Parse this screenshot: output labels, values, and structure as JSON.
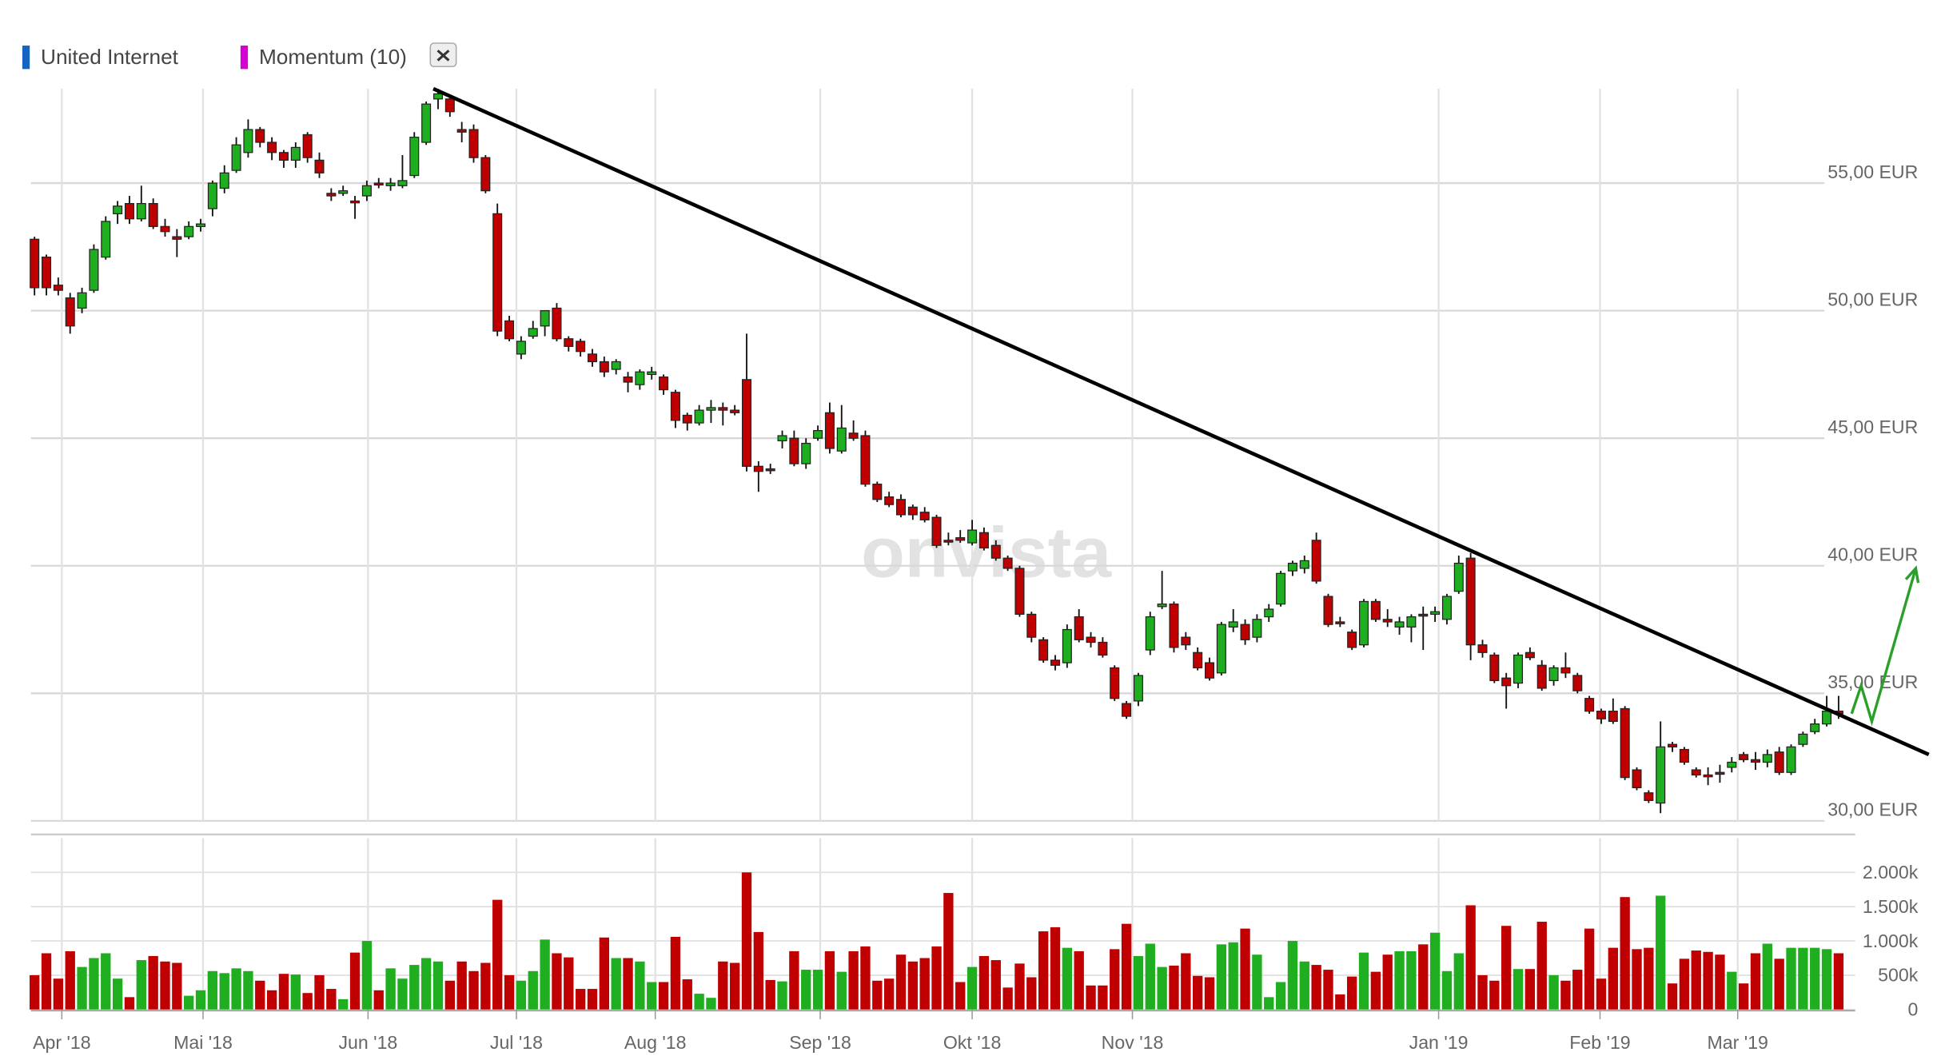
{
  "chart_data": {
    "type": "candlestick",
    "legend": [
      {
        "name": "United Internet",
        "color": "#1565c0"
      },
      {
        "name": "Momentum (10)",
        "color": "#d400d4"
      }
    ],
    "watermark": "onvista",
    "up_color": "#1fae1f",
    "down_color": "#c00000",
    "xlim": [
      -0.3,
      153.4
    ],
    "xticks": [
      {
        "value": 2.3,
        "label": "Apr '18"
      },
      {
        "value": 14.2,
        "label": "Mai '18"
      },
      {
        "value": 28.1,
        "label": "Jun '18"
      },
      {
        "value": 40.6,
        "label": "Jul '18"
      },
      {
        "value": 52.3,
        "label": "Aug '18"
      },
      {
        "value": 66.2,
        "label": "Sep '18"
      },
      {
        "value": 79.0,
        "label": "Okt '18"
      },
      {
        "value": 92.5,
        "label": "Nov '18"
      },
      {
        "value": 118.3,
        "label": "Jan '19"
      },
      {
        "value": 131.9,
        "label": "Feb '19"
      },
      {
        "value": 143.5,
        "label": "Mar '19"
      }
    ],
    "ylim": [
      30,
      58.7
    ],
    "yticks": [
      {
        "value": 30,
        "label": "30,00 EUR"
      },
      {
        "value": 35,
        "label": "35,00 EUR"
      },
      {
        "value": 40,
        "label": "40,00 EUR"
      },
      {
        "value": 45,
        "label": "45,00 EUR"
      },
      {
        "value": 50,
        "label": "50,00 EUR"
      },
      {
        "value": 55,
        "label": "55,00 EUR"
      }
    ],
    "grid": true,
    "candles": [
      [
        52.8,
        52.9,
        50.6,
        50.9
      ],
      [
        52.1,
        52.2,
        50.6,
        50.9
      ],
      [
        51.0,
        51.3,
        50.6,
        50.8
      ],
      [
        50.5,
        50.7,
        49.1,
        49.4
      ],
      [
        50.1,
        50.9,
        49.9,
        50.7
      ],
      [
        50.8,
        52.6,
        50.7,
        52.4
      ],
      [
        52.1,
        53.7,
        52.0,
        53.5
      ],
      [
        53.8,
        54.3,
        53.4,
        54.1
      ],
      [
        54.2,
        54.5,
        53.4,
        53.6
      ],
      [
        53.6,
        54.9,
        53.5,
        54.2
      ],
      [
        54.2,
        54.4,
        53.2,
        53.3
      ],
      [
        53.3,
        53.6,
        52.9,
        53.1
      ],
      [
        52.9,
        53.2,
        52.1,
        52.8
      ],
      [
        52.9,
        53.5,
        52.8,
        53.3
      ],
      [
        53.3,
        53.6,
        53.1,
        53.4
      ],
      [
        54.0,
        55.1,
        53.7,
        55.0
      ],
      [
        54.8,
        55.7,
        54.6,
        55.4
      ],
      [
        55.5,
        56.8,
        55.4,
        56.5
      ],
      [
        56.2,
        57.5,
        56.0,
        57.1
      ],
      [
        57.1,
        57.2,
        56.4,
        56.6
      ],
      [
        56.6,
        56.8,
        55.9,
        56.2
      ],
      [
        56.2,
        56.3,
        55.6,
        55.9
      ],
      [
        55.9,
        56.6,
        55.6,
        56.4
      ],
      [
        56.9,
        57.0,
        55.8,
        56.0
      ],
      [
        55.9,
        56.2,
        55.2,
        55.4
      ],
      [
        54.6,
        54.8,
        54.3,
        54.5
      ],
      [
        54.6,
        54.9,
        54.5,
        54.7
      ],
      [
        54.3,
        54.5,
        53.6,
        54.3
      ],
      [
        54.5,
        55.1,
        54.3,
        54.9
      ],
      [
        55.0,
        55.2,
        54.8,
        55.0
      ],
      [
        54.9,
        55.2,
        54.7,
        55.0
      ],
      [
        54.9,
        56.1,
        54.8,
        55.1
      ],
      [
        55.3,
        57.0,
        55.2,
        56.8
      ],
      [
        56.6,
        58.2,
        56.5,
        58.1
      ],
      [
        58.3,
        58.7,
        57.9,
        58.5
      ],
      [
        58.3,
        58.4,
        57.6,
        57.8
      ],
      [
        57.1,
        57.4,
        56.6,
        57.0
      ],
      [
        57.1,
        57.3,
        55.8,
        56.0
      ],
      [
        56.0,
        56.1,
        54.6,
        54.7
      ],
      [
        53.8,
        54.2,
        49.0,
        49.2
      ],
      [
        49.6,
        49.8,
        48.8,
        48.9
      ],
      [
        48.3,
        49.0,
        48.1,
        48.8
      ],
      [
        49.0,
        49.6,
        48.9,
        49.3
      ],
      [
        49.4,
        50.0,
        49.0,
        50.0
      ],
      [
        50.1,
        50.3,
        48.8,
        48.9
      ],
      [
        48.9,
        49.0,
        48.4,
        48.6
      ],
      [
        48.8,
        48.9,
        48.2,
        48.4
      ],
      [
        48.3,
        48.5,
        47.8,
        48.0
      ],
      [
        48.0,
        48.2,
        47.4,
        47.6
      ],
      [
        47.7,
        48.1,
        47.5,
        48.0
      ],
      [
        47.4,
        47.6,
        46.8,
        47.2
      ],
      [
        47.1,
        47.7,
        46.9,
        47.6
      ],
      [
        47.5,
        47.8,
        47.3,
        47.6
      ],
      [
        47.4,
        47.5,
        46.7,
        46.9
      ],
      [
        46.8,
        46.9,
        45.4,
        45.7
      ],
      [
        45.9,
        46.0,
        45.3,
        45.6
      ],
      [
        45.6,
        46.3,
        45.5,
        46.1
      ],
      [
        46.1,
        46.5,
        45.6,
        46.2
      ],
      [
        46.2,
        46.4,
        45.5,
        46.1
      ],
      [
        46.1,
        46.3,
        45.9,
        46.0
      ],
      [
        47.3,
        49.1,
        43.7,
        43.9
      ],
      [
        43.9,
        44.1,
        42.9,
        43.7
      ],
      [
        43.8,
        44.0,
        43.6,
        43.8
      ],
      [
        44.9,
        45.3,
        44.6,
        45.1
      ],
      [
        45.0,
        45.3,
        43.9,
        44.0
      ],
      [
        44.0,
        45.0,
        43.8,
        44.8
      ],
      [
        45.0,
        45.5,
        44.9,
        45.3
      ],
      [
        46.0,
        46.4,
        44.4,
        44.6
      ],
      [
        44.5,
        46.3,
        44.4,
        45.4
      ],
      [
        45.2,
        45.7,
        44.9,
        45.0
      ],
      [
        45.1,
        45.3,
        43.1,
        43.2
      ],
      [
        43.2,
        43.3,
        42.5,
        42.6
      ],
      [
        42.7,
        42.9,
        42.3,
        42.4
      ],
      [
        42.6,
        42.8,
        41.9,
        42.0
      ],
      [
        42.3,
        42.4,
        41.8,
        42.0
      ],
      [
        42.1,
        42.3,
        41.7,
        41.8
      ],
      [
        41.9,
        42.0,
        40.7,
        40.8
      ],
      [
        41.0,
        41.3,
        40.8,
        41.0
      ],
      [
        41.1,
        41.4,
        40.9,
        41.0
      ],
      [
        40.9,
        41.8,
        40.8,
        41.4
      ],
      [
        41.3,
        41.5,
        40.6,
        40.7
      ],
      [
        40.8,
        41.0,
        40.2,
        40.3
      ],
      [
        40.3,
        40.4,
        39.8,
        39.9
      ],
      [
        39.9,
        40.0,
        38.0,
        38.1
      ],
      [
        38.1,
        38.2,
        37.0,
        37.2
      ],
      [
        37.1,
        37.2,
        36.2,
        36.3
      ],
      [
        36.3,
        36.5,
        35.9,
        36.1
      ],
      [
        36.2,
        37.7,
        36.0,
        37.5
      ],
      [
        38.0,
        38.3,
        37.0,
        37.1
      ],
      [
        37.2,
        37.4,
        36.8,
        37.0
      ],
      [
        37.0,
        37.2,
        36.4,
        36.5
      ],
      [
        36.0,
        36.1,
        34.7,
        34.8
      ],
      [
        34.6,
        34.7,
        34.0,
        34.1
      ],
      [
        34.7,
        35.8,
        34.5,
        35.7
      ],
      [
        36.7,
        38.2,
        36.5,
        38.0
      ],
      [
        38.4,
        39.8,
        38.3,
        38.5
      ],
      [
        38.5,
        38.6,
        36.6,
        36.8
      ],
      [
        37.2,
        37.4,
        36.7,
        36.9
      ],
      [
        36.6,
        36.8,
        35.9,
        36.0
      ],
      [
        36.2,
        36.4,
        35.5,
        35.6
      ],
      [
        35.8,
        37.8,
        35.7,
        37.7
      ],
      [
        37.6,
        38.3,
        37.4,
        37.8
      ],
      [
        37.7,
        37.9,
        36.9,
        37.1
      ],
      [
        37.2,
        38.1,
        37.0,
        37.9
      ],
      [
        38.0,
        38.5,
        37.8,
        38.3
      ],
      [
        38.5,
        39.8,
        38.4,
        39.7
      ],
      [
        39.8,
        40.2,
        39.6,
        40.1
      ],
      [
        39.9,
        40.4,
        39.7,
        40.2
      ],
      [
        41.0,
        41.3,
        39.3,
        39.4
      ],
      [
        38.8,
        38.9,
        37.6,
        37.7
      ],
      [
        37.8,
        38.0,
        37.6,
        37.8
      ],
      [
        37.4,
        37.5,
        36.7,
        36.8
      ],
      [
        36.9,
        38.7,
        36.8,
        38.6
      ],
      [
        38.6,
        38.7,
        37.8,
        37.9
      ],
      [
        37.9,
        38.3,
        37.6,
        37.8
      ],
      [
        37.6,
        38.0,
        37.3,
        37.8
      ],
      [
        37.6,
        38.1,
        37.0,
        38.0
      ],
      [
        38.1,
        38.4,
        36.7,
        38.1
      ],
      [
        38.1,
        38.4,
        37.8,
        38.2
      ],
      [
        37.9,
        38.9,
        37.7,
        38.8
      ],
      [
        39.0,
        40.4,
        38.9,
        40.1
      ],
      [
        40.3,
        40.5,
        36.3,
        36.9
      ],
      [
        36.9,
        37.1,
        36.4,
        36.6
      ],
      [
        36.5,
        36.6,
        35.4,
        35.5
      ],
      [
        35.6,
        35.8,
        34.4,
        35.3
      ],
      [
        35.4,
        36.6,
        35.2,
        36.5
      ],
      [
        36.6,
        36.8,
        36.3,
        36.4
      ],
      [
        36.1,
        36.3,
        35.1,
        35.2
      ],
      [
        35.5,
        36.1,
        35.3,
        36.0
      ],
      [
        36.0,
        36.6,
        35.6,
        35.8
      ],
      [
        35.7,
        35.8,
        35.0,
        35.1
      ],
      [
        34.8,
        34.9,
        34.2,
        34.3
      ],
      [
        34.3,
        34.4,
        33.8,
        34.0
      ],
      [
        34.3,
        34.8,
        33.8,
        33.9
      ],
      [
        34.4,
        34.5,
        31.6,
        31.7
      ],
      [
        32.0,
        32.1,
        31.2,
        31.3
      ],
      [
        31.1,
        31.2,
        30.7,
        30.8
      ],
      [
        30.7,
        33.9,
        30.3,
        32.9
      ],
      [
        33.0,
        33.1,
        32.7,
        32.9
      ],
      [
        32.8,
        32.9,
        32.2,
        32.3
      ],
      [
        32.0,
        32.1,
        31.7,
        31.8
      ],
      [
        31.8,
        32.1,
        31.4,
        31.8
      ],
      [
        31.9,
        32.2,
        31.5,
        31.9
      ],
      [
        32.1,
        32.5,
        31.9,
        32.3
      ],
      [
        32.6,
        32.7,
        32.3,
        32.4
      ],
      [
        32.4,
        32.7,
        32.0,
        32.3
      ],
      [
        32.3,
        32.8,
        32.1,
        32.6
      ],
      [
        32.7,
        32.9,
        31.8,
        31.9
      ],
      [
        31.9,
        33.0,
        31.8,
        32.9
      ],
      [
        33.0,
        33.5,
        32.9,
        33.4
      ],
      [
        33.5,
        34.0,
        33.4,
        33.8
      ],
      [
        33.8,
        34.9,
        33.7,
        34.3
      ],
      [
        34.3,
        34.9,
        34.0,
        34.2
      ]
    ],
    "volume": {
      "ylim": [
        0,
        2500
      ],
      "yticks": [
        0,
        {
          "value": 500,
          "label": "500k"
        },
        {
          "value": 1000,
          "label": "1.000k"
        },
        {
          "value": 1500,
          "label": "1.500k"
        },
        {
          "value": 2000,
          "label": "2.000k"
        }
      ],
      "values": [
        500,
        820,
        450,
        850,
        620,
        750,
        820,
        450,
        180,
        720,
        780,
        700,
        680,
        200,
        280,
        560,
        530,
        600,
        560,
        420,
        280,
        520,
        510,
        240,
        500,
        300,
        150,
        830,
        1000,
        280,
        600,
        450,
        650,
        750,
        700,
        420,
        700,
        560,
        680,
        1600,
        500,
        420,
        560,
        1020,
        820,
        760,
        300,
        300,
        1050,
        750,
        750,
        700,
        400,
        400,
        1060,
        440,
        230,
        170,
        700,
        680,
        2000,
        1130,
        430,
        410,
        850,
        580,
        580,
        850,
        550,
        850,
        920,
        420,
        450,
        800,
        700,
        750,
        920,
        1700,
        400,
        620,
        780,
        720,
        320,
        670,
        470,
        1140,
        1200,
        900,
        850,
        350,
        350,
        880,
        1250,
        780,
        960,
        620,
        640,
        820,
        490,
        470,
        950,
        980,
        1180,
        800,
        180,
        400,
        1000,
        700,
        650,
        580,
        220,
        480,
        830,
        550,
        800,
        850,
        850,
        950,
        1120,
        560,
        820,
        1520,
        500,
        420,
        1220,
        590,
        590,
        1280,
        500,
        420,
        580,
        1180,
        450,
        900,
        1640,
        880,
        900,
        1660,
        380,
        740,
        860,
        840,
        800,
        550,
        380,
        820,
        960,
        740,
        900,
        900,
        900,
        880,
        820
      ]
    },
    "annotations": [
      {
        "color": "#000000",
        "points": [
          [
            33.6,
            58.7
          ],
          [
            159.6,
            32.6
          ]
        ]
      },
      {
        "color": "#2aa02a",
        "points": [
          [
            153.1,
            34.2
          ],
          [
            153.9,
            35.3
          ],
          [
            154.8,
            33.9
          ],
          [
            158.5,
            39.9
          ]
        ],
        "arrow": true
      }
    ]
  }
}
